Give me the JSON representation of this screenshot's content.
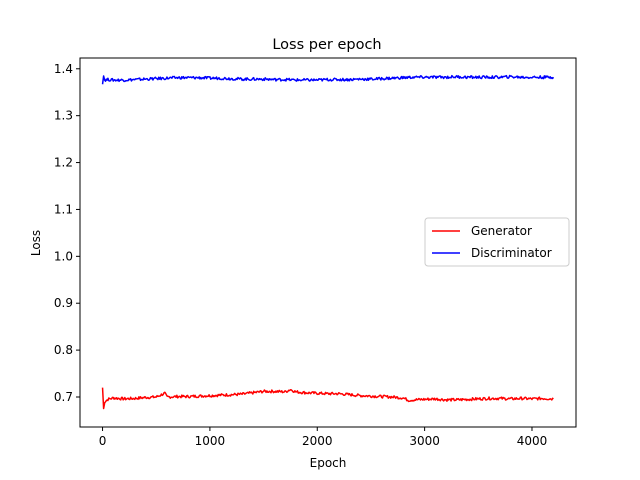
{
  "chart_data": {
    "type": "line",
    "title": "Loss per epoch",
    "xlabel": "Epoch",
    "ylabel": "Loss",
    "xlim": [
      -210,
      4410
    ],
    "ylim": [
      0.636,
      1.423
    ],
    "xticks": [
      0,
      1000,
      2000,
      3000,
      4000
    ],
    "yticks": [
      0.7,
      0.8,
      0.9,
      1.0,
      1.1,
      1.2,
      1.3,
      1.4
    ],
    "grid": false,
    "legend_position": "center-right",
    "series": [
      {
        "name": "Generator",
        "color": "#ff0000",
        "x": [
          0,
          10,
          20,
          50,
          100,
          200,
          300,
          400,
          500,
          580,
          600,
          700,
          800,
          900,
          1000,
          1100,
          1200,
          1300,
          1400,
          1500,
          1600,
          1700,
          1750,
          1800,
          1900,
          2000,
          2100,
          2200,
          2300,
          2400,
          2500,
          2600,
          2700,
          2800,
          2850,
          2900,
          3000,
          3100,
          3200,
          3300,
          3400,
          3500,
          3600,
          3700,
          3800,
          3900,
          4000,
          4100,
          4200
        ],
        "y": [
          0.72,
          0.675,
          0.69,
          0.695,
          0.698,
          0.696,
          0.697,
          0.699,
          0.7,
          0.708,
          0.7,
          0.701,
          0.701,
          0.702,
          0.703,
          0.704,
          0.705,
          0.706,
          0.709,
          0.712,
          0.712,
          0.711,
          0.716,
          0.711,
          0.709,
          0.708,
          0.707,
          0.707,
          0.705,
          0.703,
          0.702,
          0.701,
          0.7,
          0.698,
          0.693,
          0.694,
          0.695,
          0.696,
          0.694,
          0.694,
          0.695,
          0.696,
          0.697,
          0.697,
          0.696,
          0.697,
          0.696,
          0.697,
          0.696
        ]
      },
      {
        "name": "Discriminator",
        "color": "#0000ff",
        "x": [
          0,
          10,
          20,
          50,
          100,
          200,
          300,
          400,
          500,
          600,
          700,
          800,
          900,
          1000,
          1100,
          1200,
          1300,
          1400,
          1500,
          1600,
          1700,
          1800,
          1900,
          2000,
          2100,
          2200,
          2300,
          2400,
          2500,
          2600,
          2700,
          2800,
          2900,
          3000,
          3100,
          3200,
          3300,
          3400,
          3500,
          3600,
          3700,
          3800,
          3900,
          4000,
          4100,
          4200
        ],
        "y": [
          1.37,
          1.385,
          1.376,
          1.377,
          1.376,
          1.376,
          1.377,
          1.378,
          1.379,
          1.38,
          1.381,
          1.381,
          1.381,
          1.38,
          1.38,
          1.379,
          1.378,
          1.378,
          1.378,
          1.377,
          1.377,
          1.376,
          1.376,
          1.376,
          1.377,
          1.377,
          1.377,
          1.378,
          1.378,
          1.379,
          1.38,
          1.381,
          1.382,
          1.382,
          1.382,
          1.382,
          1.383,
          1.382,
          1.382,
          1.382,
          1.382,
          1.383,
          1.382,
          1.382,
          1.382,
          1.382
        ]
      }
    ]
  }
}
